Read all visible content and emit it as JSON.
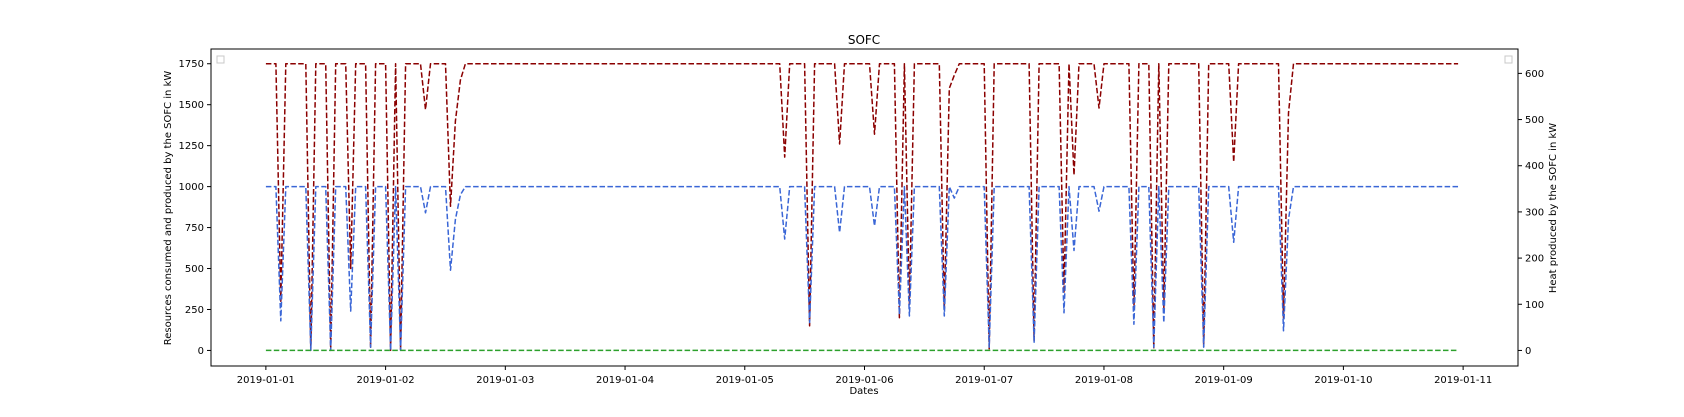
{
  "chart_data": {
    "type": "line",
    "title": "SOFC",
    "xlabel": "Dates",
    "ylabel_left": "Resources consumed and produced by the SOFC in kW",
    "ylabel_right": "Heat produced by the SOFC in kW",
    "x_ticks": [
      "2019-01-01",
      "2019-01-02",
      "2019-01-03",
      "2019-01-04",
      "2019-01-05",
      "2019-01-06",
      "2019-01-07",
      "2019-01-08",
      "2019-01-09",
      "2019-01-10",
      "2019-01-11"
    ],
    "y_left_ticks": [
      "0",
      "250",
      "500",
      "750",
      "1000",
      "1250",
      "1500",
      "1750"
    ],
    "y_right_ticks": [
      "0",
      "100",
      "200",
      "300",
      "400",
      "500",
      "600"
    ],
    "xlim": [
      "2018-12-31T13:00",
      "2019-01-11T11:00"
    ],
    "ylim_left": [
      -95,
      1840
    ],
    "ylim_right": [
      -33.7,
      652.8
    ],
    "legend": "empty legend boxes at top-left and top-right",
    "grid": false,
    "series": [
      {
        "axis": "left",
        "color": "#8b0000",
        "style": "dashed",
        "points": [
          [
            "2019-01-01T00:00",
            1750
          ],
          [
            "2019-01-01T01:00",
            1750
          ],
          [
            "2019-01-01T02:00",
            1750
          ],
          [
            "2019-01-01T03:00",
            300
          ],
          [
            "2019-01-01T04:00",
            1750
          ],
          [
            "2019-01-01T07:00",
            1750
          ],
          [
            "2019-01-01T08:00",
            1750
          ],
          [
            "2019-01-01T09:00",
            0
          ],
          [
            "2019-01-01T10:00",
            1750
          ],
          [
            "2019-01-01T11:00",
            1750
          ],
          [
            "2019-01-01T12:00",
            1750
          ],
          [
            "2019-01-01T13:00",
            0
          ],
          [
            "2019-01-01T14:00",
            1750
          ],
          [
            "2019-01-01T15:00",
            1750
          ],
          [
            "2019-01-01T16:00",
            1750
          ],
          [
            "2019-01-01T17:00",
            500
          ],
          [
            "2019-01-01T18:00",
            1750
          ],
          [
            "2019-01-01T19:00",
            1750
          ],
          [
            "2019-01-01T20:00",
            1750
          ],
          [
            "2019-01-01T21:00",
            20
          ],
          [
            "2019-01-01T22:00",
            1750
          ],
          [
            "2019-01-01T23:00",
            1750
          ],
          [
            "2019-01-02T00:00",
            1750
          ],
          [
            "2019-01-02T01:00",
            0
          ],
          [
            "2019-01-02T02:00",
            1750
          ],
          [
            "2019-01-02T03:00",
            0
          ],
          [
            "2019-01-02T04:00",
            1750
          ],
          [
            "2019-01-02T07:00",
            1750
          ],
          [
            "2019-01-02T08:00",
            1470
          ],
          [
            "2019-01-02T09:00",
            1750
          ],
          [
            "2019-01-02T12:00",
            1750
          ],
          [
            "2019-01-02T13:00",
            880
          ],
          [
            "2019-01-02T14:00",
            1400
          ],
          [
            "2019-01-02T15:00",
            1650
          ],
          [
            "2019-01-02T16:00",
            1750
          ],
          [
            "2019-01-05T07:00",
            1750
          ],
          [
            "2019-01-05T08:00",
            1180
          ],
          [
            "2019-01-05T09:00",
            1750
          ],
          [
            "2019-01-05T12:00",
            1750
          ],
          [
            "2019-01-05T13:00",
            150
          ],
          [
            "2019-01-05T14:00",
            1750
          ],
          [
            "2019-01-05T18:00",
            1750
          ],
          [
            "2019-01-05T19:00",
            1260
          ],
          [
            "2019-01-05T20:00",
            1750
          ],
          [
            "2019-01-06T01:00",
            1750
          ],
          [
            "2019-01-06T02:00",
            1320
          ],
          [
            "2019-01-06T03:00",
            1750
          ],
          [
            "2019-01-06T06:00",
            1750
          ],
          [
            "2019-01-06T07:00",
            200
          ],
          [
            "2019-01-06T08:00",
            1750
          ],
          [
            "2019-01-06T09:00",
            280
          ],
          [
            "2019-01-06T10:00",
            1750
          ],
          [
            "2019-01-06T15:00",
            1750
          ],
          [
            "2019-01-06T16:00",
            250
          ],
          [
            "2019-01-06T17:00",
            1600
          ],
          [
            "2019-01-06T18:00",
            1680
          ],
          [
            "2019-01-06T19:00",
            1750
          ],
          [
            "2019-01-07T00:00",
            1750
          ],
          [
            "2019-01-07T01:00",
            10
          ],
          [
            "2019-01-07T02:00",
            1750
          ],
          [
            "2019-01-07T09:00",
            1750
          ],
          [
            "2019-01-07T10:00",
            60
          ],
          [
            "2019-01-07T11:00",
            1750
          ],
          [
            "2019-01-07T15:00",
            1750
          ],
          [
            "2019-01-07T16:00",
            350
          ],
          [
            "2019-01-07T17:00",
            1750
          ],
          [
            "2019-01-07T18:00",
            1070
          ],
          [
            "2019-01-07T19:00",
            1750
          ],
          [
            "2019-01-07T22:00",
            1750
          ],
          [
            "2019-01-07T23:00",
            1480
          ],
          [
            "2019-01-08T00:00",
            1750
          ],
          [
            "2019-01-08T05:00",
            1750
          ],
          [
            "2019-01-08T06:00",
            250
          ],
          [
            "2019-01-08T07:00",
            1750
          ],
          [
            "2019-01-08T09:00",
            1750
          ],
          [
            "2019-01-08T10:00",
            10
          ],
          [
            "2019-01-08T11:00",
            1750
          ],
          [
            "2019-01-08T12:00",
            250
          ],
          [
            "2019-01-08T13:00",
            1750
          ],
          [
            "2019-01-08T19:00",
            1750
          ],
          [
            "2019-01-08T20:00",
            20
          ],
          [
            "2019-01-08T21:00",
            1750
          ],
          [
            "2019-01-09T01:00",
            1750
          ],
          [
            "2019-01-09T02:00",
            1150
          ],
          [
            "2019-01-09T03:00",
            1750
          ],
          [
            "2019-01-09T11:00",
            1750
          ],
          [
            "2019-01-09T12:00",
            200
          ],
          [
            "2019-01-09T13:00",
            1450
          ],
          [
            "2019-01-09T14:00",
            1750
          ],
          [
            "2019-01-10T23:00",
            1750
          ]
        ]
      },
      {
        "axis": "left",
        "color": "#3a66d6",
        "style": "dashed",
        "points": [
          [
            "2019-01-01T00:00",
            1000
          ],
          [
            "2019-01-01T01:00",
            1000
          ],
          [
            "2019-01-01T02:00",
            1000
          ],
          [
            "2019-01-01T03:00",
            180
          ],
          [
            "2019-01-01T04:00",
            1000
          ],
          [
            "2019-01-01T07:00",
            1000
          ],
          [
            "2019-01-01T08:00",
            1000
          ],
          [
            "2019-01-01T09:00",
            0
          ],
          [
            "2019-01-01T10:00",
            1000
          ],
          [
            "2019-01-01T11:00",
            1000
          ],
          [
            "2019-01-01T12:00",
            1000
          ],
          [
            "2019-01-01T13:00",
            0
          ],
          [
            "2019-01-01T14:00",
            1000
          ],
          [
            "2019-01-01T15:00",
            1000
          ],
          [
            "2019-01-01T16:00",
            1000
          ],
          [
            "2019-01-01T17:00",
            240
          ],
          [
            "2019-01-01T18:00",
            1000
          ],
          [
            "2019-01-01T19:00",
            1000
          ],
          [
            "2019-01-01T20:00",
            1000
          ],
          [
            "2019-01-01T21:00",
            20
          ],
          [
            "2019-01-01T22:00",
            1000
          ],
          [
            "2019-01-01T23:00",
            1000
          ],
          [
            "2019-01-02T00:00",
            1000
          ],
          [
            "2019-01-02T01:00",
            0
          ],
          [
            "2019-01-02T02:00",
            1000
          ],
          [
            "2019-01-02T03:00",
            0
          ],
          [
            "2019-01-02T04:00",
            1000
          ],
          [
            "2019-01-02T07:00",
            1000
          ],
          [
            "2019-01-02T08:00",
            840
          ],
          [
            "2019-01-02T09:00",
            1000
          ],
          [
            "2019-01-02T12:00",
            1000
          ],
          [
            "2019-01-02T13:00",
            490
          ],
          [
            "2019-01-02T14:00",
            800
          ],
          [
            "2019-01-02T15:00",
            950
          ],
          [
            "2019-01-02T16:00",
            1000
          ],
          [
            "2019-01-05T07:00",
            1000
          ],
          [
            "2019-01-05T08:00",
            680
          ],
          [
            "2019-01-05T09:00",
            1000
          ],
          [
            "2019-01-05T12:00",
            1000
          ],
          [
            "2019-01-05T13:00",
            170
          ],
          [
            "2019-01-05T14:00",
            1000
          ],
          [
            "2019-01-05T18:00",
            1000
          ],
          [
            "2019-01-05T19:00",
            720
          ],
          [
            "2019-01-05T20:00",
            1000
          ],
          [
            "2019-01-06T01:00",
            1000
          ],
          [
            "2019-01-06T02:00",
            760
          ],
          [
            "2019-01-06T03:00",
            1000
          ],
          [
            "2019-01-06T06:00",
            1000
          ],
          [
            "2019-01-06T07:00",
            220
          ],
          [
            "2019-01-06T08:00",
            1000
          ],
          [
            "2019-01-06T09:00",
            210
          ],
          [
            "2019-01-06T10:00",
            1000
          ],
          [
            "2019-01-06T15:00",
            1000
          ],
          [
            "2019-01-06T16:00",
            210
          ],
          [
            "2019-01-06T17:00",
            1000
          ],
          [
            "2019-01-06T18:00",
            930
          ],
          [
            "2019-01-06T19:00",
            1000
          ],
          [
            "2019-01-07T00:00",
            1000
          ],
          [
            "2019-01-07T01:00",
            20
          ],
          [
            "2019-01-07T02:00",
            1000
          ],
          [
            "2019-01-07T09:00",
            1000
          ],
          [
            "2019-01-07T10:00",
            50
          ],
          [
            "2019-01-07T11:00",
            1000
          ],
          [
            "2019-01-07T15:00",
            1000
          ],
          [
            "2019-01-07T16:00",
            230
          ],
          [
            "2019-01-07T17:00",
            1000
          ],
          [
            "2019-01-07T18:00",
            610
          ],
          [
            "2019-01-07T19:00",
            1000
          ],
          [
            "2019-01-07T22:00",
            1000
          ],
          [
            "2019-01-07T23:00",
            850
          ],
          [
            "2019-01-08T00:00",
            1000
          ],
          [
            "2019-01-08T05:00",
            1000
          ],
          [
            "2019-01-08T06:00",
            160
          ],
          [
            "2019-01-08T07:00",
            1000
          ],
          [
            "2019-01-08T09:00",
            1000
          ],
          [
            "2019-01-08T10:00",
            20
          ],
          [
            "2019-01-08T11:00",
            1000
          ],
          [
            "2019-01-08T12:00",
            170
          ],
          [
            "2019-01-08T13:00",
            1000
          ],
          [
            "2019-01-08T19:00",
            1000
          ],
          [
            "2019-01-08T20:00",
            20
          ],
          [
            "2019-01-08T21:00",
            1000
          ],
          [
            "2019-01-09T01:00",
            1000
          ],
          [
            "2019-01-09T02:00",
            660
          ],
          [
            "2019-01-09T03:00",
            1000
          ],
          [
            "2019-01-09T11:00",
            1000
          ],
          [
            "2019-01-09T12:00",
            120
          ],
          [
            "2019-01-09T13:00",
            800
          ],
          [
            "2019-01-09T14:00",
            1000
          ],
          [
            "2019-01-10T23:00",
            1000
          ]
        ]
      },
      {
        "axis": "left",
        "color": "#2ca02c",
        "style": "dashed",
        "points": [
          [
            "2019-01-01T00:00",
            0
          ],
          [
            "2019-01-10T23:00",
            0
          ]
        ]
      }
    ]
  }
}
